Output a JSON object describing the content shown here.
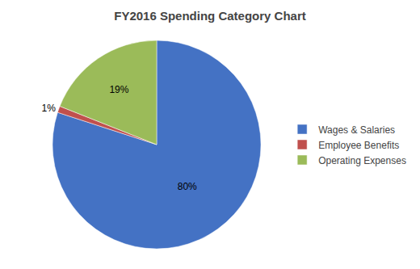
{
  "chart_data": {
    "type": "pie",
    "title": "FY2016 Spending Category Chart",
    "categories": [
      "Wages & Salaries",
      "Employee Benefits",
      "Operating Expenses"
    ],
    "values": [
      80,
      1,
      19
    ],
    "value_labels": [
      "80%",
      "1%",
      "19%"
    ],
    "colors": [
      "#4472C4",
      "#C0504D",
      "#9BBB59"
    ],
    "data_labels": true,
    "legend": "right"
  }
}
